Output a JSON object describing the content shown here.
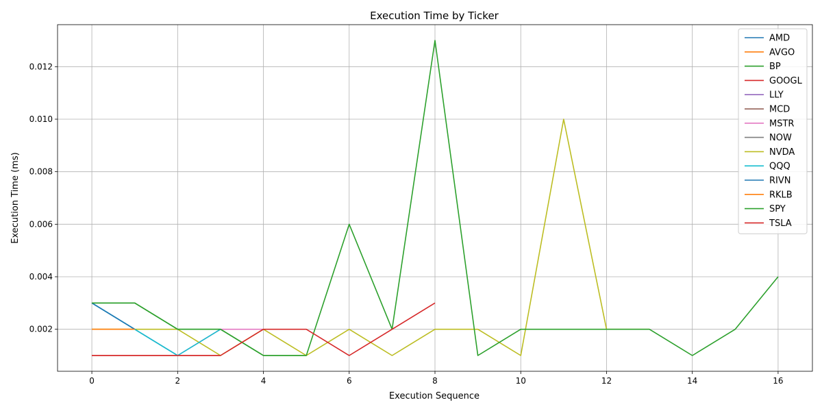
{
  "chart_data": {
    "type": "line",
    "title": "Execution Time by Ticker",
    "xlabel": "Execution Sequence",
    "ylabel": "Execution Time (ms)",
    "xlim": [
      -0.8,
      16.8
    ],
    "ylim": [
      0.0004,
      0.0136
    ],
    "xticks": [
      0,
      2,
      4,
      6,
      8,
      10,
      12,
      14,
      16
    ],
    "yticks": [
      0.002,
      0.004,
      0.006,
      0.008,
      0.01,
      0.012
    ],
    "ytick_labels": [
      "0.002",
      "0.004",
      "0.006",
      "0.008",
      "0.010",
      "0.012"
    ],
    "grid": true,
    "legend_position": "top-right",
    "series": [
      {
        "name": "AMD",
        "color": "#1f77b4",
        "x": [
          0,
          1,
          2
        ],
        "y": [
          0.003,
          0.002,
          0.001
        ]
      },
      {
        "name": "AVGO",
        "color": "#ff7f0e",
        "x": [
          0,
          1
        ],
        "y": [
          0.002,
          0.002
        ]
      },
      {
        "name": "BP",
        "color": "#2ca02c",
        "x": [
          0,
          1,
          2,
          3,
          4,
          5
        ],
        "y": [
          0.003,
          0.003,
          0.002,
          0.002,
          0.001,
          0.001
        ]
      },
      {
        "name": "GOOGL",
        "color": "#d62728",
        "x": [
          0,
          1,
          2,
          3
        ],
        "y": [
          0.001,
          0.001,
          0.001,
          0.001
        ]
      },
      {
        "name": "LLY",
        "color": "#9467bd",
        "x": [
          0
        ],
        "y": [
          0.001
        ]
      },
      {
        "name": "MCD",
        "color": "#8c564b",
        "x": [
          0
        ],
        "y": [
          0.001
        ]
      },
      {
        "name": "MSTR",
        "color": "#e377c2",
        "x": [
          2,
          3,
          4
        ],
        "y": [
          0.001,
          0.002,
          0.002
        ]
      },
      {
        "name": "NOW",
        "color": "#7f7f7f",
        "x": [
          0
        ],
        "y": [
          0.001
        ]
      },
      {
        "name": "NVDA",
        "color": "#bcbd22",
        "x": [
          0,
          1,
          2,
          3,
          4,
          5,
          6,
          7,
          8,
          9,
          10,
          11,
          12,
          13
        ],
        "y": [
          0.002,
          0.002,
          0.002,
          0.001,
          0.002,
          0.001,
          0.002,
          0.001,
          0.002,
          0.002,
          0.001,
          0.01,
          0.002,
          0.002
        ]
      },
      {
        "name": "QQQ",
        "color": "#17becf",
        "x": [
          0,
          1,
          2,
          3
        ],
        "y": [
          0.003,
          0.002,
          0.001,
          0.002
        ]
      },
      {
        "name": "RIVN",
        "color": "#1f77b4",
        "x": [
          0,
          1
        ],
        "y": [
          0.003,
          0.002
        ]
      },
      {
        "name": "RKLB",
        "color": "#ff7f0e",
        "x": [
          0,
          1
        ],
        "y": [
          0.002,
          0.002
        ]
      },
      {
        "name": "SPY",
        "color": "#2ca02c",
        "x": [
          0,
          1,
          2,
          3,
          4,
          5,
          6,
          7,
          8,
          9,
          10,
          11,
          12,
          13,
          14,
          15,
          16
        ],
        "y": [
          0.003,
          0.003,
          0.002,
          0.002,
          0.001,
          0.001,
          0.006,
          0.002,
          0.013,
          0.001,
          0.002,
          0.002,
          0.002,
          0.002,
          0.001,
          0.002,
          0.004
        ]
      },
      {
        "name": "TSLA",
        "color": "#d62728",
        "x": [
          0,
          1,
          2,
          3,
          4,
          5,
          6,
          7,
          8
        ],
        "y": [
          0.001,
          0.001,
          0.001,
          0.001,
          0.002,
          0.002,
          0.001,
          0.002,
          0.003
        ]
      }
    ]
  }
}
